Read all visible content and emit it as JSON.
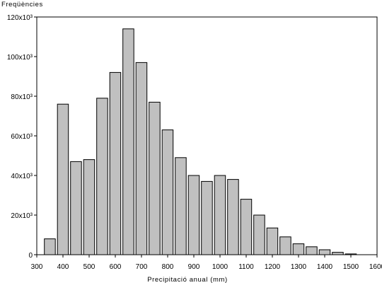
{
  "chart_data": {
    "type": "bar",
    "title": "",
    "ylabel": "Freqüències",
    "xlabel": "Precipitació anual (mm)",
    "xlim": [
      300,
      1600
    ],
    "ylim": [
      0,
      120000
    ],
    "x_ticks": [
      "300",
      "400",
      "500",
      "600",
      "700",
      "800",
      "900",
      "1000",
      "1100",
      "1200",
      "1300",
      "1400",
      "1500",
      "1600"
    ],
    "y_ticks": [
      "0",
      "20x10³",
      "40x10³",
      "60x10³",
      "80x10³",
      "100x10³",
      "120x10³"
    ],
    "bin_width": 50,
    "bin_centers": [
      350,
      400,
      450,
      500,
      550,
      600,
      650,
      700,
      750,
      800,
      850,
      900,
      950,
      1000,
      1050,
      1100,
      1150,
      1200,
      1250,
      1300,
      1350,
      1400,
      1450,
      1500
    ],
    "values": [
      8000,
      76000,
      47000,
      48000,
      79000,
      92000,
      114000,
      97000,
      77000,
      63000,
      49000,
      40000,
      37000,
      40000,
      38000,
      28000,
      20000,
      13500,
      9000,
      5500,
      4000,
      2500,
      1200,
      400
    ],
    "grid": false,
    "legend": "none",
    "bar_color": "#c0c0c0",
    "bar_edge_color": "#000000"
  }
}
